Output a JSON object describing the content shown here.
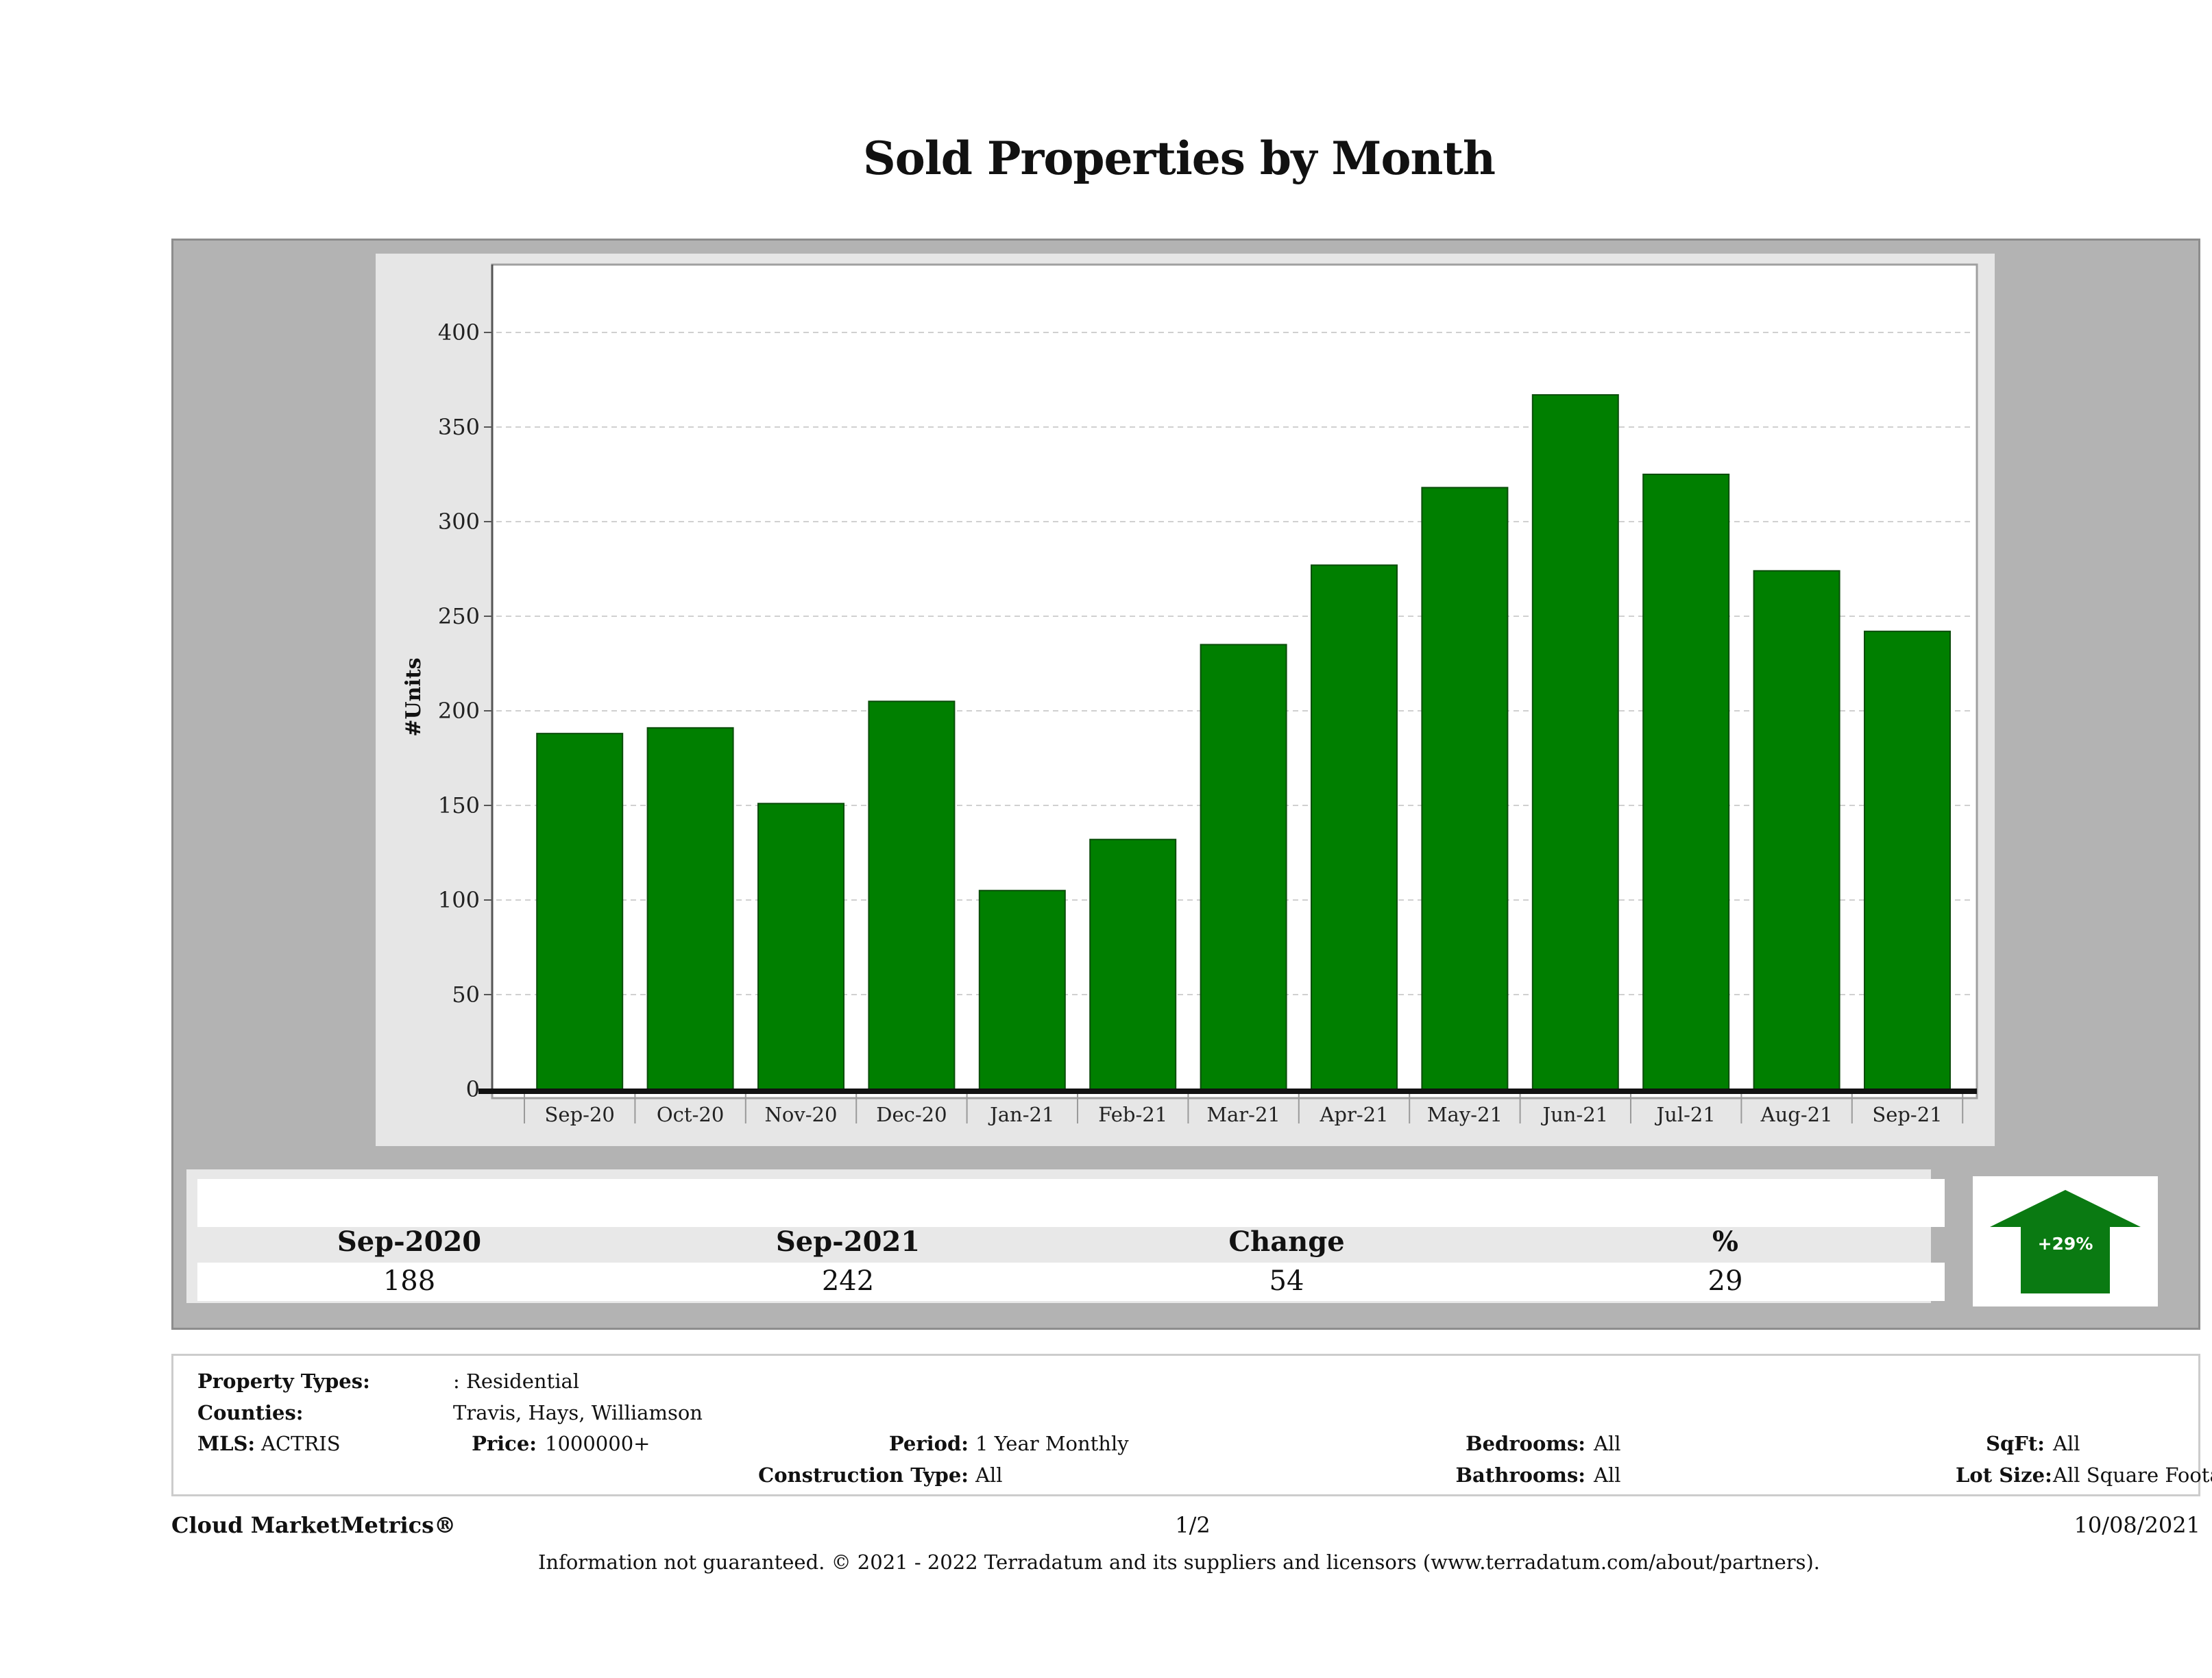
{
  "page": {
    "title": "Sold Properties by Month"
  },
  "chart_data": {
    "type": "bar",
    "title": "Sold Properties by Month",
    "xlabel": "",
    "ylabel": "#Units",
    "categories": [
      "Sep-20",
      "Oct-20",
      "Nov-20",
      "Dec-20",
      "Jan-21",
      "Feb-21",
      "Mar-21",
      "Apr-21",
      "May-21",
      "Jun-21",
      "Jul-21",
      "Aug-21",
      "Sep-21"
    ],
    "values": [
      188,
      191,
      151,
      205,
      105,
      132,
      235,
      277,
      318,
      367,
      325,
      274,
      242
    ],
    "yticks": [
      0,
      50,
      100,
      150,
      200,
      250,
      300,
      350,
      400
    ],
    "ylim": [
      0,
      440
    ],
    "grid": true,
    "bar_color": "#007f00"
  },
  "summary": {
    "headers": [
      "Sep-2020",
      "Sep-2021",
      "Change",
      "%"
    ],
    "values": [
      "188",
      "242",
      "54",
      "29"
    ],
    "indicator_label": "+29%",
    "indicator_color": "#0a7a12"
  },
  "filters": {
    "property_types_label": "Property Types:",
    "property_types_value": ": Residential",
    "counties_label": "Counties:",
    "counties_value": "Travis, Hays, Williamson",
    "mls_label": "MLS:",
    "mls_value": "ACTRIS",
    "price_label": "Price:",
    "price_value": "1000000+",
    "period_label": "Period:",
    "period_value": "1 Year Monthly",
    "construction_label": "Construction Type:",
    "construction_value": "All",
    "bedrooms_label": "Bedrooms:",
    "bedrooms_value": "All",
    "bathrooms_label": "Bathrooms:",
    "bathrooms_value": "All",
    "sqft_label": "SqFt:",
    "sqft_value": "All",
    "lotsize_label": "Lot Size:",
    "lotsize_value": "All Square Footage"
  },
  "footer": {
    "brand": "Cloud MarketMetrics®",
    "page": "1/2",
    "date": "10/08/2021",
    "disclaimer": "Information not guaranteed. © 2021 - 2022 Terradatum and its suppliers and licensors (www.terradatum.com/about/partners)."
  }
}
